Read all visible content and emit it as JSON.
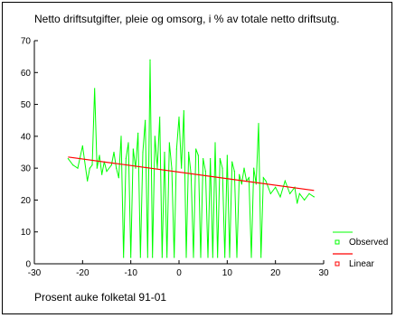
{
  "chart_data": {
    "type": "line",
    "title": "Netto driftsutgifter, pleie og omsorg, i % av totale netto driftsutg.",
    "xlabel": "Prosent auke folketal 91-01",
    "ylabel": "",
    "xlim": [
      -30,
      30
    ],
    "ylim": [
      0,
      70
    ],
    "x_ticks": [
      -30,
      -20,
      -10,
      0,
      10,
      20,
      30
    ],
    "y_ticks": [
      0,
      10,
      20,
      30,
      40,
      50,
      60,
      70
    ],
    "grid": false,
    "legend_position": "bottom-right",
    "series": [
      {
        "name": "Observed",
        "color": "#00ff00",
        "style": "line",
        "points": [
          [
            -23,
            33
          ],
          [
            -22,
            31
          ],
          [
            -21,
            30
          ],
          [
            -20,
            37
          ],
          [
            -19,
            26
          ],
          [
            -18.5,
            30
          ],
          [
            -18,
            31
          ],
          [
            -17.5,
            55
          ],
          [
            -17,
            30
          ],
          [
            -16.5,
            34
          ],
          [
            -16,
            28
          ],
          [
            -15.5,
            32
          ],
          [
            -15,
            29
          ],
          [
            -14,
            31
          ],
          [
            -13.5,
            35
          ],
          [
            -13,
            30
          ],
          [
            -12.5,
            27
          ],
          [
            -12,
            40
          ],
          [
            -11.5,
            2
          ],
          [
            -11,
            33
          ],
          [
            -10.5,
            38
          ],
          [
            -10,
            2
          ],
          [
            -9.5,
            36
          ],
          [
            -9,
            30
          ],
          [
            -8.5,
            41
          ],
          [
            -8,
            2
          ],
          [
            -7.5,
            35
          ],
          [
            -7,
            45
          ],
          [
            -6.5,
            2
          ],
          [
            -6,
            64
          ],
          [
            -5.5,
            2
          ],
          [
            -5,
            40
          ],
          [
            -4.5,
            30
          ],
          [
            -4,
            46
          ],
          [
            -3.5,
            2
          ],
          [
            -3,
            35
          ],
          [
            -2.5,
            2
          ],
          [
            -2,
            38
          ],
          [
            -1.5,
            30
          ],
          [
            -1,
            2
          ],
          [
            -0.5,
            36
          ],
          [
            0,
            46
          ],
          [
            0.5,
            30
          ],
          [
            1,
            48
          ],
          [
            1.5,
            2
          ],
          [
            2,
            35
          ],
          [
            2.5,
            28
          ],
          [
            3,
            2
          ],
          [
            3.5,
            36
          ],
          [
            4,
            34
          ],
          [
            4.5,
            2
          ],
          [
            5,
            33
          ],
          [
            5.5,
            29
          ],
          [
            6,
            2
          ],
          [
            6.5,
            33
          ],
          [
            7,
            2
          ],
          [
            7.5,
            38
          ],
          [
            8,
            2
          ],
          [
            8.5,
            33
          ],
          [
            9,
            30
          ],
          [
            9.5,
            2
          ],
          [
            10,
            34
          ],
          [
            10.5,
            2
          ],
          [
            11,
            32
          ],
          [
            11.5,
            29
          ],
          [
            12,
            2
          ],
          [
            12.5,
            28
          ],
          [
            13,
            25
          ],
          [
            13.5,
            30
          ],
          [
            14,
            26
          ],
          [
            14.5,
            27
          ],
          [
            15,
            2
          ],
          [
            15.5,
            30
          ],
          [
            16,
            25
          ],
          [
            16.5,
            44
          ],
          [
            17,
            2
          ],
          [
            17.5,
            27
          ],
          [
            18,
            26
          ],
          [
            19,
            22
          ],
          [
            20,
            24
          ],
          [
            21,
            21
          ],
          [
            22,
            26
          ],
          [
            23,
            22
          ],
          [
            24,
            24
          ],
          [
            24.5,
            19
          ],
          [
            25,
            22
          ],
          [
            26,
            20
          ],
          [
            27,
            22
          ],
          [
            28,
            21
          ]
        ]
      },
      {
        "name": "Linear",
        "color": "#ff0000",
        "style": "line",
        "points": [
          [
            -23,
            33.5
          ],
          [
            28,
            23
          ]
        ]
      }
    ]
  }
}
